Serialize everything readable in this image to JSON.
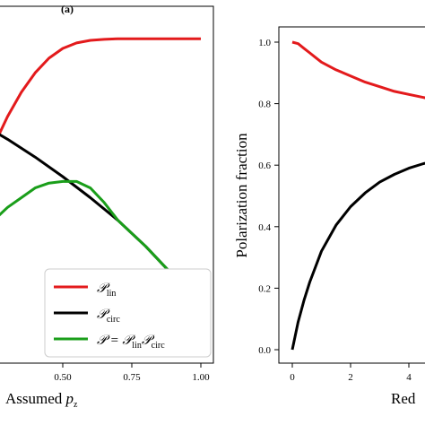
{
  "panel_label": "(a)",
  "chart_data": [
    {
      "type": "line",
      "xlabel_main": "Assumed ",
      "xlabel_var": "p",
      "xlabel_sub": "z",
      "xlim": [
        0.0,
        1.0
      ],
      "xtick_labels": [
        "0.50",
        "0.75",
        "1.00"
      ],
      "xtick_values": [
        0.5,
        0.75,
        1.0
      ],
      "colors": {
        "lin": "#e31a1c",
        "circ": "#000000",
        "prod": "#1a9e1a"
      },
      "legend": {
        "placement": "lower-right",
        "entries": [
          {
            "key": "lin",
            "symbol": "𝒫",
            "sub": "lin"
          },
          {
            "key": "circ",
            "symbol": "𝒫",
            "sub": "circ"
          },
          {
            "key": "prod",
            "symbol": "𝒫 = 𝒫",
            "sub": "lin",
            "symbol2": "𝒫",
            "sub2": "circ"
          }
        ]
      },
      "series": [
        {
          "key": "lin",
          "x": [
            0.0,
            0.05,
            0.1,
            0.15,
            0.2,
            0.25,
            0.3,
            0.35,
            0.4,
            0.45,
            0.5,
            0.55,
            0.6,
            0.65,
            0.7,
            0.75,
            0.8,
            0.9,
            1.0
          ],
          "y": [
            0.05,
            0.18,
            0.32,
            0.45,
            0.57,
            0.67,
            0.76,
            0.835,
            0.895,
            0.94,
            0.97,
            0.987,
            0.995,
            0.998,
            1.0,
            1.0,
            1.0,
            1.0,
            1.0
          ]
        },
        {
          "key": "circ",
          "x": [
            0.0,
            0.1,
            0.2,
            0.3,
            0.4,
            0.5,
            0.6,
            0.7,
            0.8,
            0.9,
            1.0
          ],
          "y": [
            0.8,
            0.78,
            0.74,
            0.69,
            0.635,
            0.575,
            0.51,
            0.44,
            0.36,
            0.27,
            0.17
          ]
        },
        {
          "key": "prod",
          "x": [
            0.0,
            0.05,
            0.1,
            0.15,
            0.2,
            0.25,
            0.3,
            0.35,
            0.4,
            0.45,
            0.5,
            0.55,
            0.6,
            0.65,
            0.7,
            0.75,
            0.8,
            0.9,
            1.0
          ],
          "y": [
            0.04,
            0.14,
            0.24,
            0.32,
            0.39,
            0.44,
            0.48,
            0.51,
            0.54,
            0.555,
            0.56,
            0.56,
            0.54,
            0.495,
            0.44,
            0.4,
            0.36,
            0.27,
            0.17
          ]
        }
      ],
      "ylim": [
        0.0,
        1.1
      ]
    },
    {
      "type": "line",
      "ylabel": "Polarization fraction",
      "xlabel_visible": "Red",
      "xlim": [
        -0.3,
        5.2
      ],
      "ylim": [
        -0.06,
        1.06
      ],
      "xtick_labels": [
        "0",
        "2",
        "4"
      ],
      "xtick_values": [
        0,
        2,
        4
      ],
      "ytick_labels": [
        "0.0",
        "0.2",
        "0.4",
        "0.6",
        "0.8",
        "1.0"
      ],
      "ytick_values": [
        0.0,
        0.2,
        0.4,
        0.6,
        0.8,
        1.0
      ],
      "series": [
        {
          "key": "red",
          "x": [
            0.0,
            0.2,
            0.4,
            0.6,
            0.8,
            1.0,
            1.5,
            2.0,
            2.5,
            3.0,
            3.5,
            4.0,
            4.5,
            5.0
          ],
          "y": [
            1.0,
            0.995,
            0.98,
            0.965,
            0.95,
            0.935,
            0.91,
            0.89,
            0.87,
            0.855,
            0.84,
            0.83,
            0.82,
            0.81
          ]
        },
        {
          "key": "black",
          "x": [
            0.0,
            0.2,
            0.4,
            0.6,
            0.8,
            1.0,
            1.5,
            2.0,
            2.5,
            3.0,
            3.5,
            4.0,
            4.5,
            5.0
          ],
          "y": [
            0.0,
            0.09,
            0.16,
            0.22,
            0.27,
            0.32,
            0.405,
            0.465,
            0.51,
            0.545,
            0.57,
            0.59,
            0.605,
            0.615
          ]
        }
      ],
      "colors": {
        "red": "#e31a1c",
        "black": "#000000"
      }
    }
  ]
}
